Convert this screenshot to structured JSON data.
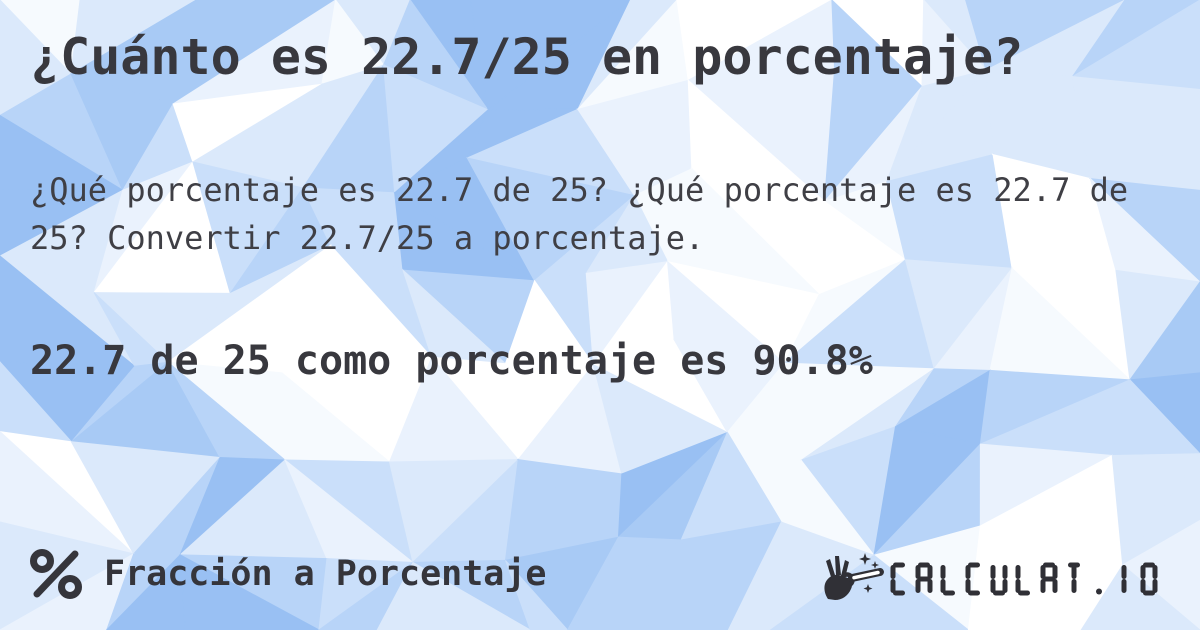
{
  "page": {
    "title": "¿Cuánto es 22.7/25 en porcentaje?",
    "description": "¿Qué porcentaje es 22.7 de 25? ¿Qué porcentaje es 22.7 de 25? Convertir 22.7/25 a porcentaje.",
    "result": "22.7 de 25 como porcentaje es 90.8%"
  },
  "footer": {
    "category_icon": "percent-icon",
    "category_label": "Fracción a Porcentaje",
    "brand": {
      "logo_icon": "magic-wand-hand-icon",
      "name": "CALCULAT.IO"
    }
  },
  "colors": {
    "text_dark": "#38383e",
    "text_body": "#3f3f45",
    "logo": "#303036",
    "background_palette": [
      "#ffffff",
      "#f6fafe",
      "#eaf2fd",
      "#dbe9fb",
      "#cadffa",
      "#b8d4f8",
      "#a8caf5",
      "#99c0f3"
    ]
  }
}
